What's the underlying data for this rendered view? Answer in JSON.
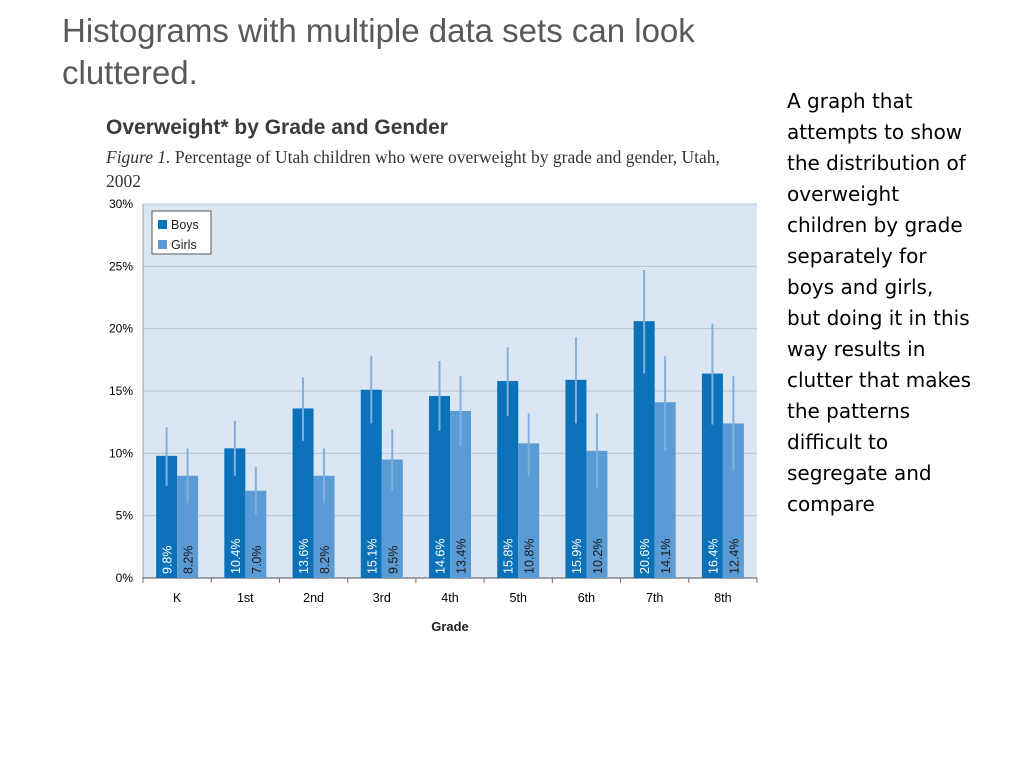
{
  "slide": {
    "title": "Histograms with multiple data sets can look cluttered.",
    "description": "A graph that attempts to show the distribution of overweight children by grade separately for boys and girls, but doing it in this way results in clutter that makes the patterns difficult to segregate and compare"
  },
  "chart_data": {
    "type": "bar",
    "title": "Overweight* by Grade and Gender",
    "caption_label": "Figure 1.",
    "caption_text": "Percentage of Utah children who were overweight by grade and gender, Utah, 2002",
    "xlabel": "Grade",
    "ylabel": "",
    "categories": [
      "K",
      "1st",
      "2nd",
      "3rd",
      "4th",
      "5th",
      "6th",
      "7th",
      "8th"
    ],
    "ylim": [
      0,
      30
    ],
    "yticks": [
      0,
      5,
      10,
      15,
      20,
      25,
      30
    ],
    "ytick_labels": [
      "0%",
      "5%",
      "10%",
      "15%",
      "20%",
      "25%",
      "30%"
    ],
    "grid": true,
    "legend_position": "top-left",
    "series": [
      {
        "name": "Boys",
        "color": "#0b72b9",
        "values": [
          9.8,
          10.4,
          13.6,
          15.1,
          14.6,
          15.8,
          15.9,
          20.6,
          16.4
        ],
        "labels": [
          "9.8%",
          "10.4%",
          "13.6%",
          "15.1%",
          "14.6%",
          "15.8%",
          "15.9%",
          "20.6%",
          "16.4%"
        ],
        "error_low": [
          7.4,
          8.2,
          11.0,
          12.4,
          11.8,
          13.0,
          12.4,
          16.4,
          12.3
        ],
        "error_high": [
          12.1,
          12.6,
          16.1,
          17.8,
          17.4,
          18.5,
          19.3,
          24.7,
          20.4
        ]
      },
      {
        "name": "Girls",
        "color": "#5b9bd5",
        "values": [
          8.2,
          7.0,
          8.2,
          9.5,
          13.4,
          10.8,
          10.2,
          14.1,
          12.4
        ],
        "labels": [
          "8.2%",
          "7.0%",
          "8.2%",
          "9.5%",
          "13.4%",
          "10.8%",
          "10.2%",
          "14.1%",
          "12.4%"
        ],
        "error_low": [
          6.0,
          5.1,
          6.0,
          7.0,
          10.6,
          8.2,
          7.2,
          10.2,
          8.6
        ],
        "error_high": [
          10.4,
          8.9,
          10.4,
          11.9,
          16.2,
          13.2,
          13.2,
          17.8,
          16.2
        ]
      }
    ],
    "colors": {
      "plot_background": "#dce6f2",
      "gridline": "#b8c4d2",
      "error_bar": "#7fb0e0",
      "axis_text": "#000000"
    }
  }
}
